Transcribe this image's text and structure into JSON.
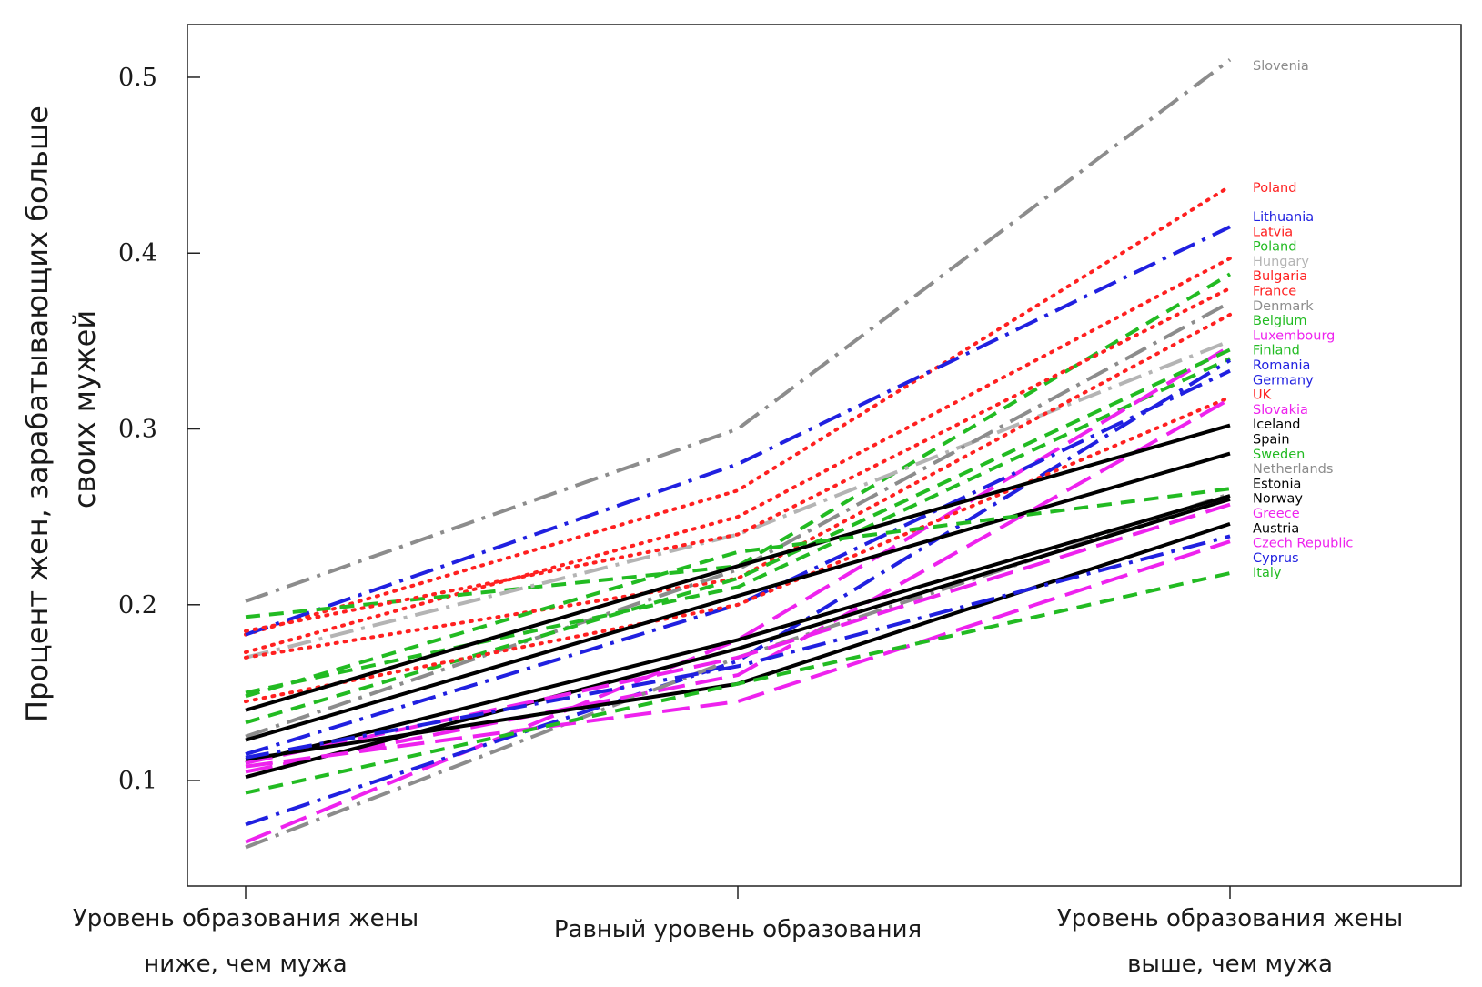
{
  "chart_data": {
    "type": "line",
    "title": "",
    "xlabel": "",
    "ylabel_lines": [
      "Процент жен, зарабатывающих больше",
      "своих мужей"
    ],
    "categories": [
      [
        "Уровень образования жены",
        "ниже, чем мужа"
      ],
      [
        "Равный уровень образования"
      ],
      [
        "Уровень образования жены",
        "выше, чем мужа"
      ]
    ],
    "ylim": [
      0.04,
      0.53
    ],
    "yticks": [
      0.1,
      0.2,
      0.3,
      0.4,
      0.5
    ],
    "ytick_labels": [
      "0.1",
      "0.2",
      "0.3",
      "0.4",
      "0.5"
    ],
    "grid": false,
    "legend": "right-end labels",
    "series": [
      {
        "name": "Slovenia",
        "values": [
          0.202,
          0.3,
          0.51
        ],
        "color": "#8c8c8c",
        "style": "dashdot"
      },
      {
        "name": "Poland",
        "values": [
          0.183,
          0.265,
          0.438
        ],
        "color": "#ff2020",
        "style": "dotted"
      },
      {
        "name": "Lithuania",
        "values": [
          0.183,
          0.28,
          0.415
        ],
        "color": "#2020e0",
        "style": "dashdot"
      },
      {
        "name": "Latvia",
        "values": [
          0.173,
          0.25,
          0.397
        ],
        "color": "#ff2020",
        "style": "dotted"
      },
      {
        "name": "Poland",
        "values": [
          0.193,
          0.222,
          0.388
        ],
        "color": "#22bb22",
        "style": "dashed"
      },
      {
        "name": "Hungary",
        "values": [
          0.17,
          0.24,
          0.35
        ],
        "color": "#b4b4b4",
        "style": "dashdot"
      },
      {
        "name": "Bulgaria",
        "values": [
          0.185,
          0.24,
          0.38
        ],
        "color": "#ff2020",
        "style": "dotted"
      },
      {
        "name": "France",
        "values": [
          0.17,
          0.215,
          0.365
        ],
        "color": "#ff2020",
        "style": "dotted"
      },
      {
        "name": "Denmark",
        "values": [
          0.125,
          0.22,
          0.372
        ],
        "color": "#8c8c8c",
        "style": "dashdot"
      },
      {
        "name": "Belgium",
        "values": [
          0.15,
          0.21,
          0.34
        ],
        "color": "#22bb22",
        "style": "dashed"
      },
      {
        "name": "Luxembourg",
        "values": [
          0.065,
          0.18,
          0.347
        ],
        "color": "#ee22ee",
        "style": "longdash"
      },
      {
        "name": "Finland",
        "values": [
          0.133,
          0.215,
          0.345
        ],
        "color": "#22bb22",
        "style": "dashed"
      },
      {
        "name": "Romania",
        "values": [
          0.075,
          0.168,
          0.339
        ],
        "color": "#2020e0",
        "style": "dashdot"
      },
      {
        "name": "Germany",
        "values": [
          0.115,
          0.2,
          0.333
        ],
        "color": "#2020e0",
        "style": "dashdot"
      },
      {
        "name": "UK",
        "values": [
          0.145,
          0.2,
          0.318
        ],
        "color": "#ff2020",
        "style": "dotted"
      },
      {
        "name": "Slovakia",
        "values": [
          0.105,
          0.16,
          0.317
        ],
        "color": "#ee22ee",
        "style": "longdash"
      },
      {
        "name": "Iceland",
        "values": [
          0.14,
          0.222,
          0.302
        ],
        "color": "#000000",
        "style": "solid"
      },
      {
        "name": "Spain",
        "values": [
          0.123,
          0.205,
          0.286
        ],
        "color": "#000000",
        "style": "solid"
      },
      {
        "name": "Sweden",
        "values": [
          0.148,
          0.23,
          0.266
        ],
        "color": "#22bb22",
        "style": "dashed"
      },
      {
        "name": "Netherlands",
        "values": [
          0.062,
          0.17,
          0.263
        ],
        "color": "#8c8c8c",
        "style": "dashdot"
      },
      {
        "name": "Estonia",
        "values": [
          0.11,
          0.18,
          0.262
        ],
        "color": "#000000",
        "style": "solid"
      },
      {
        "name": "Norway",
        "values": [
          0.102,
          0.175,
          0.26
        ],
        "color": "#000000",
        "style": "solid"
      },
      {
        "name": "Greece",
        "values": [
          0.11,
          0.17,
          0.257
        ],
        "color": "#ee22ee",
        "style": "longdash"
      },
      {
        "name": "Austria",
        "values": [
          0.112,
          0.155,
          0.246
        ],
        "color": "#000000",
        "style": "solid"
      },
      {
        "name": "Czech Republic",
        "values": [
          0.108,
          0.145,
          0.236
        ],
        "color": "#ee22ee",
        "style": "longdash"
      },
      {
        "name": "Cyprus",
        "values": [
          0.113,
          0.165,
          0.239
        ],
        "color": "#2020e0",
        "style": "dashdot"
      },
      {
        "name": "Italy",
        "values": [
          0.093,
          0.155,
          0.218
        ],
        "color": "#22bb22",
        "style": "dashed"
      }
    ]
  }
}
